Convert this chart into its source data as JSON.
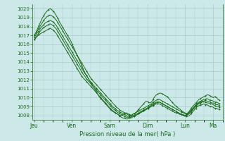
{
  "title": "",
  "xlabel": "Pression niveau de la mer( hPa )",
  "bg_color": "#cce8e8",
  "grid_color": "#aacccc",
  "line_color": "#1a6b1a",
  "ylim": [
    1007.5,
    1020.5
  ],
  "yticks": [
    1008,
    1009,
    1010,
    1011,
    1012,
    1013,
    1014,
    1015,
    1016,
    1017,
    1018,
    1019,
    1020
  ],
  "day_labels": [
    "Jeu",
    "Ven",
    "Sam",
    "Dim",
    "Lun",
    "Ma"
  ],
  "day_positions": [
    0,
    24,
    48,
    72,
    96,
    114
  ],
  "xlim": [
    -1,
    120
  ],
  "series": [
    [
      1017.0,
      1017.3,
      1017.7,
      1018.1,
      1018.5,
      1018.9,
      1019.2,
      1019.5,
      1019.7,
      1019.9,
      1020.0,
      1019.9,
      1019.7,
      1019.5,
      1019.2,
      1018.9,
      1018.5,
      1018.2,
      1017.9,
      1017.6,
      1017.3,
      1017.0,
      1016.7,
      1016.4,
      1016.0,
      1015.6,
      1015.2,
      1014.8,
      1014.4,
      1014.0,
      1013.6,
      1013.2,
      1012.8,
      1012.5,
      1012.2,
      1011.9,
      1011.6,
      1011.3,
      1011.0,
      1010.7,
      1010.4,
      1010.1,
      1009.9,
      1009.7,
      1009.5,
      1009.3,
      1009.1,
      1008.9,
      1008.7,
      1008.5,
      1008.4,
      1008.3,
      1008.2,
      1008.1,
      1008.0,
      1008.0,
      1008.1,
      1008.2,
      1008.3,
      1008.2,
      1008.1,
      1008.0,
      1008.1,
      1008.2,
      1008.3,
      1008.5,
      1008.7,
      1008.9,
      1009.1,
      1009.3,
      1009.5,
      1009.6,
      1009.5,
      1009.4,
      1009.5,
      1009.8,
      1010.1,
      1010.3,
      1010.4,
      1010.5,
      1010.5,
      1010.4,
      1010.3,
      1010.2,
      1010.1,
      1009.9,
      1009.7,
      1009.5,
      1009.3,
      1009.1,
      1009.0,
      1008.8,
      1008.7,
      1008.5,
      1008.4,
      1008.3,
      1008.2,
      1008.3,
      1008.5,
      1008.8,
      1009.0,
      1009.2,
      1009.4,
      1009.6,
      1009.8,
      1009.9,
      1010.0,
      1010.1,
      1010.2,
      1010.3,
      1010.3,
      1010.2,
      1010.1,
      1010.0,
      1010.1,
      1010.0,
      1009.8,
      1009.7
    ],
    [
      1017.0,
      1017.2,
      1017.5,
      1017.8,
      1018.1,
      1018.4,
      1018.7,
      1018.9,
      1019.1,
      1019.2,
      1019.3,
      1019.2,
      1019.1,
      1018.9,
      1018.7,
      1018.4,
      1018.1,
      1017.8,
      1017.5,
      1017.2,
      1016.9,
      1016.6,
      1016.3,
      1016.0,
      1015.7,
      1015.4,
      1015.1,
      1014.8,
      1014.5,
      1014.2,
      1013.9,
      1013.6,
      1013.3,
      1013.0,
      1012.7,
      1012.4,
      1012.1,
      1011.9,
      1011.7,
      1011.5,
      1011.3,
      1011.1,
      1010.9,
      1010.7,
      1010.5,
      1010.3,
      1010.1,
      1009.9,
      1009.7,
      1009.5,
      1009.3,
      1009.1,
      1008.9,
      1008.8,
      1008.6,
      1008.5,
      1008.4,
      1008.3,
      1008.2,
      1008.1,
      1008.0,
      1008.0,
      1008.1,
      1008.2,
      1008.3,
      1008.4,
      1008.5,
      1008.6,
      1008.7,
      1008.8,
      1008.9,
      1009.0,
      1009.1,
      1009.2,
      1009.3,
      1009.5,
      1009.6,
      1009.7,
      1009.8,
      1009.8,
      1009.7,
      1009.6,
      1009.5,
      1009.4,
      1009.3,
      1009.2,
      1009.1,
      1009.0,
      1008.9,
      1008.8,
      1008.7,
      1008.6,
      1008.5,
      1008.4,
      1008.3,
      1008.2,
      1008.1,
      1008.2,
      1008.4,
      1008.6,
      1008.8,
      1009.0,
      1009.2,
      1009.4,
      1009.5,
      1009.6,
      1009.7,
      1009.8,
      1009.8,
      1009.9,
      1009.8,
      1009.7,
      1009.7,
      1009.6,
      1009.5,
      1009.5,
      1009.4,
      1009.3
    ],
    [
      1016.8,
      1017.0,
      1017.3,
      1017.5,
      1017.8,
      1018.0,
      1018.2,
      1018.4,
      1018.5,
      1018.6,
      1018.7,
      1018.6,
      1018.5,
      1018.3,
      1018.1,
      1017.8,
      1017.5,
      1017.2,
      1016.9,
      1016.6,
      1016.3,
      1016.0,
      1015.7,
      1015.4,
      1015.1,
      1014.8,
      1014.5,
      1014.2,
      1013.9,
      1013.6,
      1013.3,
      1013.0,
      1012.7,
      1012.5,
      1012.2,
      1011.9,
      1011.7,
      1011.5,
      1011.3,
      1011.1,
      1010.9,
      1010.7,
      1010.5,
      1010.3,
      1010.1,
      1009.9,
      1009.7,
      1009.5,
      1009.3,
      1009.1,
      1008.9,
      1008.8,
      1008.6,
      1008.5,
      1008.4,
      1008.3,
      1008.2,
      1008.1,
      1008.0,
      1007.9,
      1007.9,
      1007.9,
      1008.0,
      1008.0,
      1008.1,
      1008.2,
      1008.3,
      1008.4,
      1008.5,
      1008.6,
      1008.7,
      1008.8,
      1008.9,
      1009.0,
      1009.2,
      1009.3,
      1009.4,
      1009.5,
      1009.5,
      1009.5,
      1009.4,
      1009.3,
      1009.2,
      1009.1,
      1009.0,
      1008.9,
      1008.8,
      1008.7,
      1008.6,
      1008.5,
      1008.4,
      1008.3,
      1008.2,
      1008.1,
      1008.1,
      1008.0,
      1008.0,
      1008.1,
      1008.3,
      1008.5,
      1008.7,
      1008.9,
      1009.1,
      1009.3,
      1009.4,
      1009.5,
      1009.6,
      1009.6,
      1009.7,
      1009.6,
      1009.6,
      1009.5,
      1009.4,
      1009.4,
      1009.3,
      1009.2,
      1009.2,
      1009.1
    ],
    [
      1016.5,
      1016.8,
      1017.0,
      1017.3,
      1017.5,
      1017.7,
      1017.9,
      1018.0,
      1018.1,
      1018.2,
      1018.3,
      1018.2,
      1018.1,
      1017.9,
      1017.7,
      1017.4,
      1017.1,
      1016.8,
      1016.5,
      1016.2,
      1015.9,
      1015.6,
      1015.3,
      1015.0,
      1014.7,
      1014.4,
      1014.1,
      1013.8,
      1013.5,
      1013.2,
      1012.9,
      1012.6,
      1012.4,
      1012.1,
      1011.9,
      1011.7,
      1011.5,
      1011.3,
      1011.1,
      1010.9,
      1010.7,
      1010.5,
      1010.3,
      1010.1,
      1009.9,
      1009.7,
      1009.5,
      1009.3,
      1009.1,
      1008.9,
      1008.7,
      1008.6,
      1008.4,
      1008.3,
      1008.2,
      1008.1,
      1008.0,
      1007.9,
      1007.8,
      1007.8,
      1007.8,
      1007.8,
      1007.9,
      1007.9,
      1008.0,
      1008.1,
      1008.2,
      1008.3,
      1008.4,
      1008.5,
      1008.6,
      1008.7,
      1008.8,
      1009.0,
      1009.1,
      1009.2,
      1009.3,
      1009.4,
      1009.5,
      1009.5,
      1009.4,
      1009.3,
      1009.2,
      1009.1,
      1009.0,
      1008.9,
      1008.8,
      1008.7,
      1008.6,
      1008.5,
      1008.4,
      1008.3,
      1008.2,
      1008.1,
      1008.0,
      1008.0,
      1008.0,
      1008.1,
      1008.2,
      1008.4,
      1008.6,
      1008.8,
      1009.0,
      1009.2,
      1009.3,
      1009.4,
      1009.5,
      1009.5,
      1009.5,
      1009.4,
      1009.4,
      1009.3,
      1009.3,
      1009.2,
      1009.1,
      1009.0,
      1009.0,
      1008.9
    ],
    [
      1016.5,
      1016.7,
      1016.9,
      1017.1,
      1017.2,
      1017.3,
      1017.4,
      1017.5,
      1017.6,
      1017.7,
      1017.8,
      1017.7,
      1017.6,
      1017.4,
      1017.2,
      1016.9,
      1016.6,
      1016.3,
      1016.0,
      1015.7,
      1015.4,
      1015.1,
      1014.8,
      1014.5,
      1014.2,
      1013.9,
      1013.6,
      1013.3,
      1013.0,
      1012.7,
      1012.4,
      1012.2,
      1012.0,
      1011.8,
      1011.6,
      1011.4,
      1011.2,
      1011.0,
      1010.8,
      1010.6,
      1010.4,
      1010.2,
      1010.0,
      1009.8,
      1009.6,
      1009.4,
      1009.2,
      1009.0,
      1008.8,
      1008.6,
      1008.5,
      1008.3,
      1008.2,
      1008.1,
      1007.9,
      1007.8,
      1007.7,
      1007.7,
      1007.6,
      1007.6,
      1007.7,
      1007.7,
      1007.8,
      1007.9,
      1008.0,
      1008.1,
      1008.2,
      1008.3,
      1008.4,
      1008.5,
      1008.6,
      1008.7,
      1008.8,
      1008.9,
      1009.0,
      1009.1,
      1009.2,
      1009.3,
      1009.3,
      1009.3,
      1009.2,
      1009.1,
      1009.0,
      1008.9,
      1008.8,
      1008.7,
      1008.6,
      1008.5,
      1008.4,
      1008.3,
      1008.3,
      1008.2,
      1008.1,
      1008.1,
      1008.0,
      1007.9,
      1007.9,
      1007.9,
      1008.0,
      1008.2,
      1008.4,
      1008.6,
      1008.8,
      1009.0,
      1009.1,
      1009.2,
      1009.2,
      1009.3,
      1009.2,
      1009.2,
      1009.1,
      1009.0,
      1009.0,
      1008.9,
      1008.8,
      1008.8,
      1008.7,
      1008.7
    ]
  ]
}
